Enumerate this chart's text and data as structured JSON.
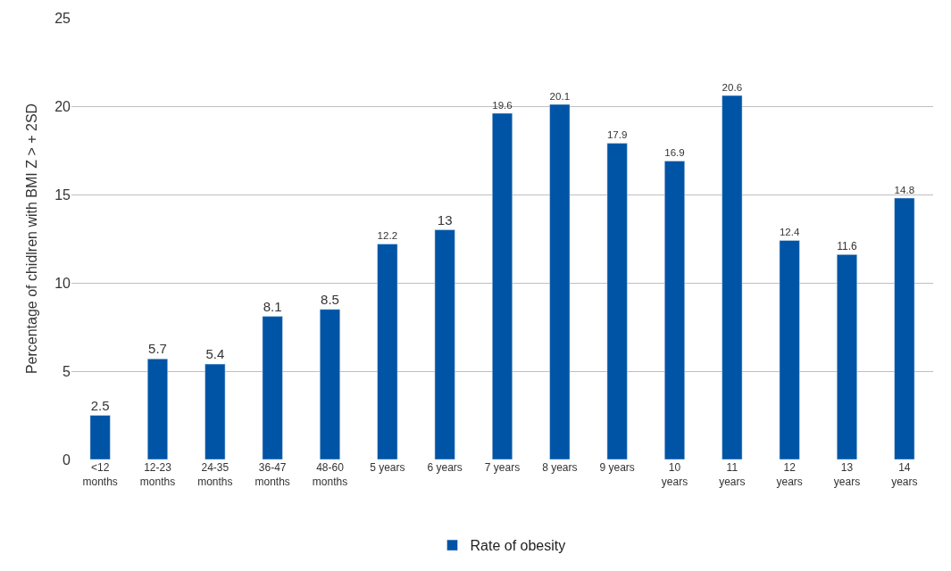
{
  "chart_data": {
    "type": "bar",
    "ylabel": "Percentage of chidlren with BMI Z > + 2SD",
    "categories": [
      "<12\nmonths",
      "12-23\nmonths",
      "24-35\nmonths",
      "36-47\nmonths",
      "48-60\nmonths",
      "5 years",
      "6 years",
      "7 years",
      "8 years",
      "9 years",
      "10\nyears",
      "11\nyears",
      "12\nyears",
      "13\nyears",
      "14\nyears"
    ],
    "series": [
      {
        "name": "Rate of obesity",
        "color": "#0054a6",
        "values": [
          2.5,
          5.7,
          5.4,
          8.1,
          8.5,
          12.2,
          13,
          19.6,
          20.1,
          17.9,
          16.9,
          20.6,
          12.4,
          11.6,
          14.8
        ]
      }
    ],
    "ylim": [
      0,
      25
    ],
    "yticks": [
      0,
      5,
      10,
      15,
      20,
      25
    ],
    "grid": "y",
    "legend": "bottom",
    "data_labels": true
  }
}
